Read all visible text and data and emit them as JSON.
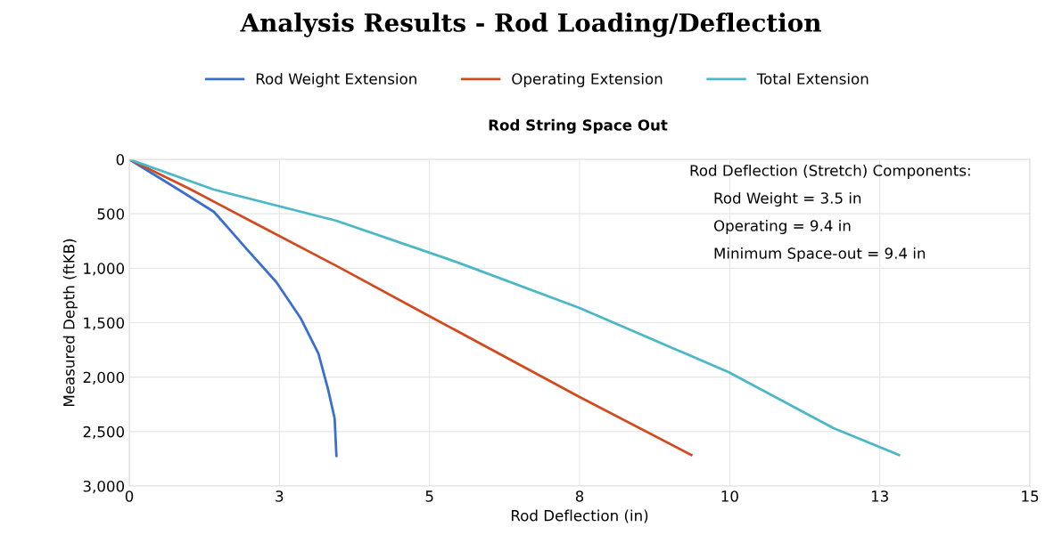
{
  "chart_data": {
    "type": "line",
    "title": "Analysis Results - Rod Loading/Deflection",
    "subtitle": "Rod String Space Out",
    "xlabel": "Rod Deflection (in)",
    "ylabel": "Measured Depth (ftKB)",
    "series": [
      {
        "name": "Rod Weight Extension",
        "color": "#3a6fd0",
        "x": [
          0,
          0.82,
          1.41,
          1.96,
          2.45,
          2.85,
          3.15,
          3.31,
          3.42,
          3.45
        ],
        "values": [
          0,
          278,
          482,
          826,
          1128,
          1455,
          1783,
          2110,
          2379,
          2723
        ]
      },
      {
        "name": "Operating Extension",
        "color": "#d24a1e",
        "x": [
          0,
          1,
          2,
          3.49,
          5,
          7.5,
          9.36
        ],
        "values": [
          0,
          270,
          560,
          990,
          1440,
          2183,
          2715
        ]
      },
      {
        "name": "Total Extension",
        "color": "#4bb8c8",
        "x": [
          0,
          1.41,
          3.45,
          5.27,
          5.72,
          7.5,
          9.98,
          11.73,
          12.82
        ],
        "values": [
          0,
          278,
          564,
          908,
          998,
          1365,
          1954,
          2469,
          2715
        ]
      }
    ],
    "xlim": [
      0,
      15
    ],
    "xticks": [
      0,
      {
        "value": 2.5,
        "label": "3"
      },
      5,
      {
        "value": 7.5,
        "label": "8"
      },
      10,
      {
        "value": 12.5,
        "label": "13"
      },
      15
    ],
    "ylim": [
      3000,
      0
    ],
    "yticks": [
      0,
      500,
      {
        "value": 1000,
        "label": "1,000"
      },
      {
        "value": 1500,
        "label": "1,500"
      },
      {
        "value": 2000,
        "label": "2,000"
      },
      {
        "value": 2500,
        "label": "2,500"
      },
      {
        "value": 3000,
        "label": "3,000"
      }
    ],
    "annotations": [
      "Rod Deflection (Stretch) Components:",
      "Rod Weight = 3.5 in",
      "Operating = 9.4 in",
      "Minimum Space-out = 9.4 in"
    ],
    "grid": true,
    "legend": "top",
    "marker": "none",
    "line_style": "solid"
  }
}
